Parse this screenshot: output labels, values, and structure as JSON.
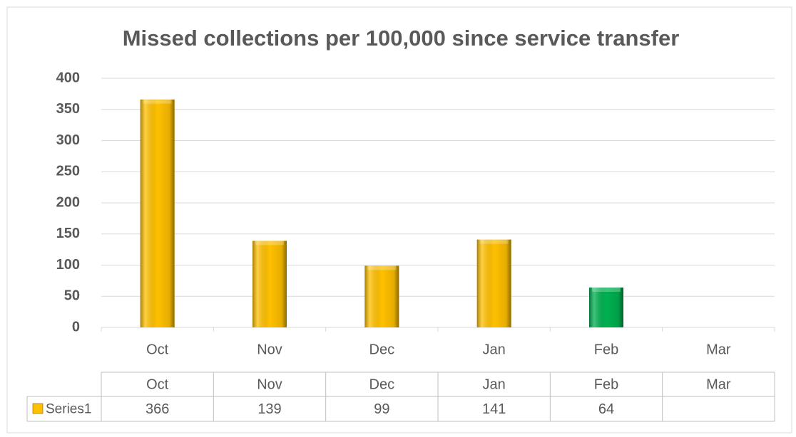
{
  "chart_data": {
    "type": "bar",
    "title": "Missed collections per 100,000 since service transfer",
    "categories": [
      "Oct",
      "Nov",
      "Dec",
      "Jan",
      "Feb",
      "Mar"
    ],
    "series": [
      {
        "name": "Series1",
        "color": "#ffc000",
        "values": [
          366,
          139,
          99,
          141,
          64,
          null
        ],
        "colors": [
          "#ffc000",
          "#ffc000",
          "#ffc000",
          "#ffc000",
          "#00b050",
          null
        ]
      }
    ],
    "ylim": [
      0,
      400
    ],
    "yticks": [
      0,
      50,
      100,
      150,
      200,
      250,
      300,
      350,
      400
    ],
    "grid": true,
    "data_table": true
  }
}
